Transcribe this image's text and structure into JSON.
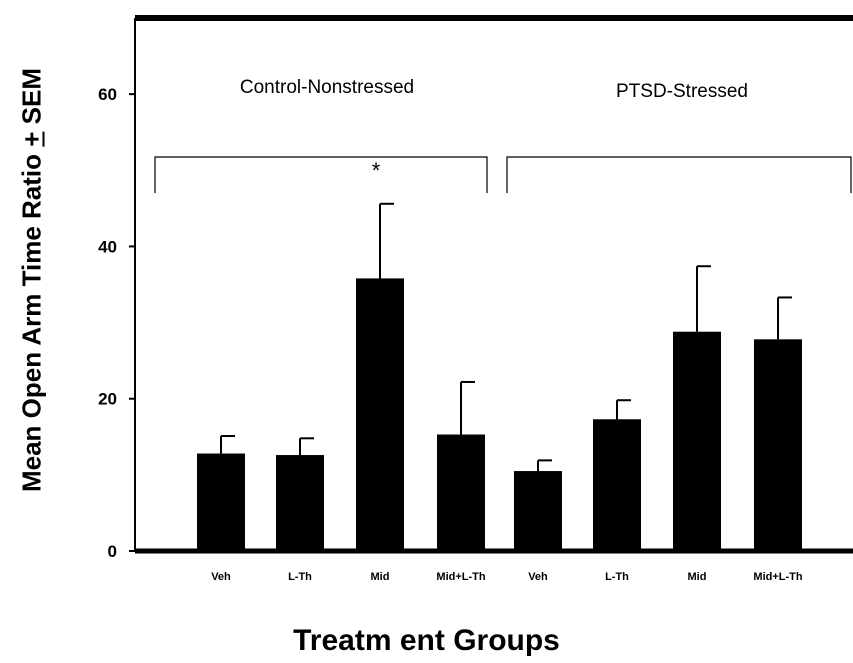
{
  "chart_data": {
    "type": "bar",
    "categories": [
      "Veh",
      "L-Th",
      "Mid",
      "Mid+L-Th",
      "Veh",
      "L-Th",
      "Mid",
      "Mid+L-Th"
    ],
    "groups": [
      {
        "label": "Control-Nonstressed",
        "categories": [
          0,
          1,
          2,
          3
        ]
      },
      {
        "label": "PTSD-Stressed",
        "categories": [
          4,
          5,
          6,
          7
        ]
      }
    ],
    "values": [
      12.8,
      12.6,
      35.8,
      15.3,
      10.5,
      17.3,
      28.8,
      27.8
    ],
    "errors": [
      2.3,
      2.2,
      9.8,
      6.9,
      1.4,
      2.5,
      8.6,
      5.5
    ],
    "ylabel_main": "Mean Open Arm Time Ratio ",
    "ylabel_pm": "+",
    "ylabel_tail": " SEM",
    "xlabel": "Treatm ent Groups",
    "yticks": [
      0,
      20,
      40,
      60
    ],
    "ylim": [
      0,
      70
    ],
    "significance_marker": "*",
    "grid": false,
    "bar_color": "#000000"
  }
}
